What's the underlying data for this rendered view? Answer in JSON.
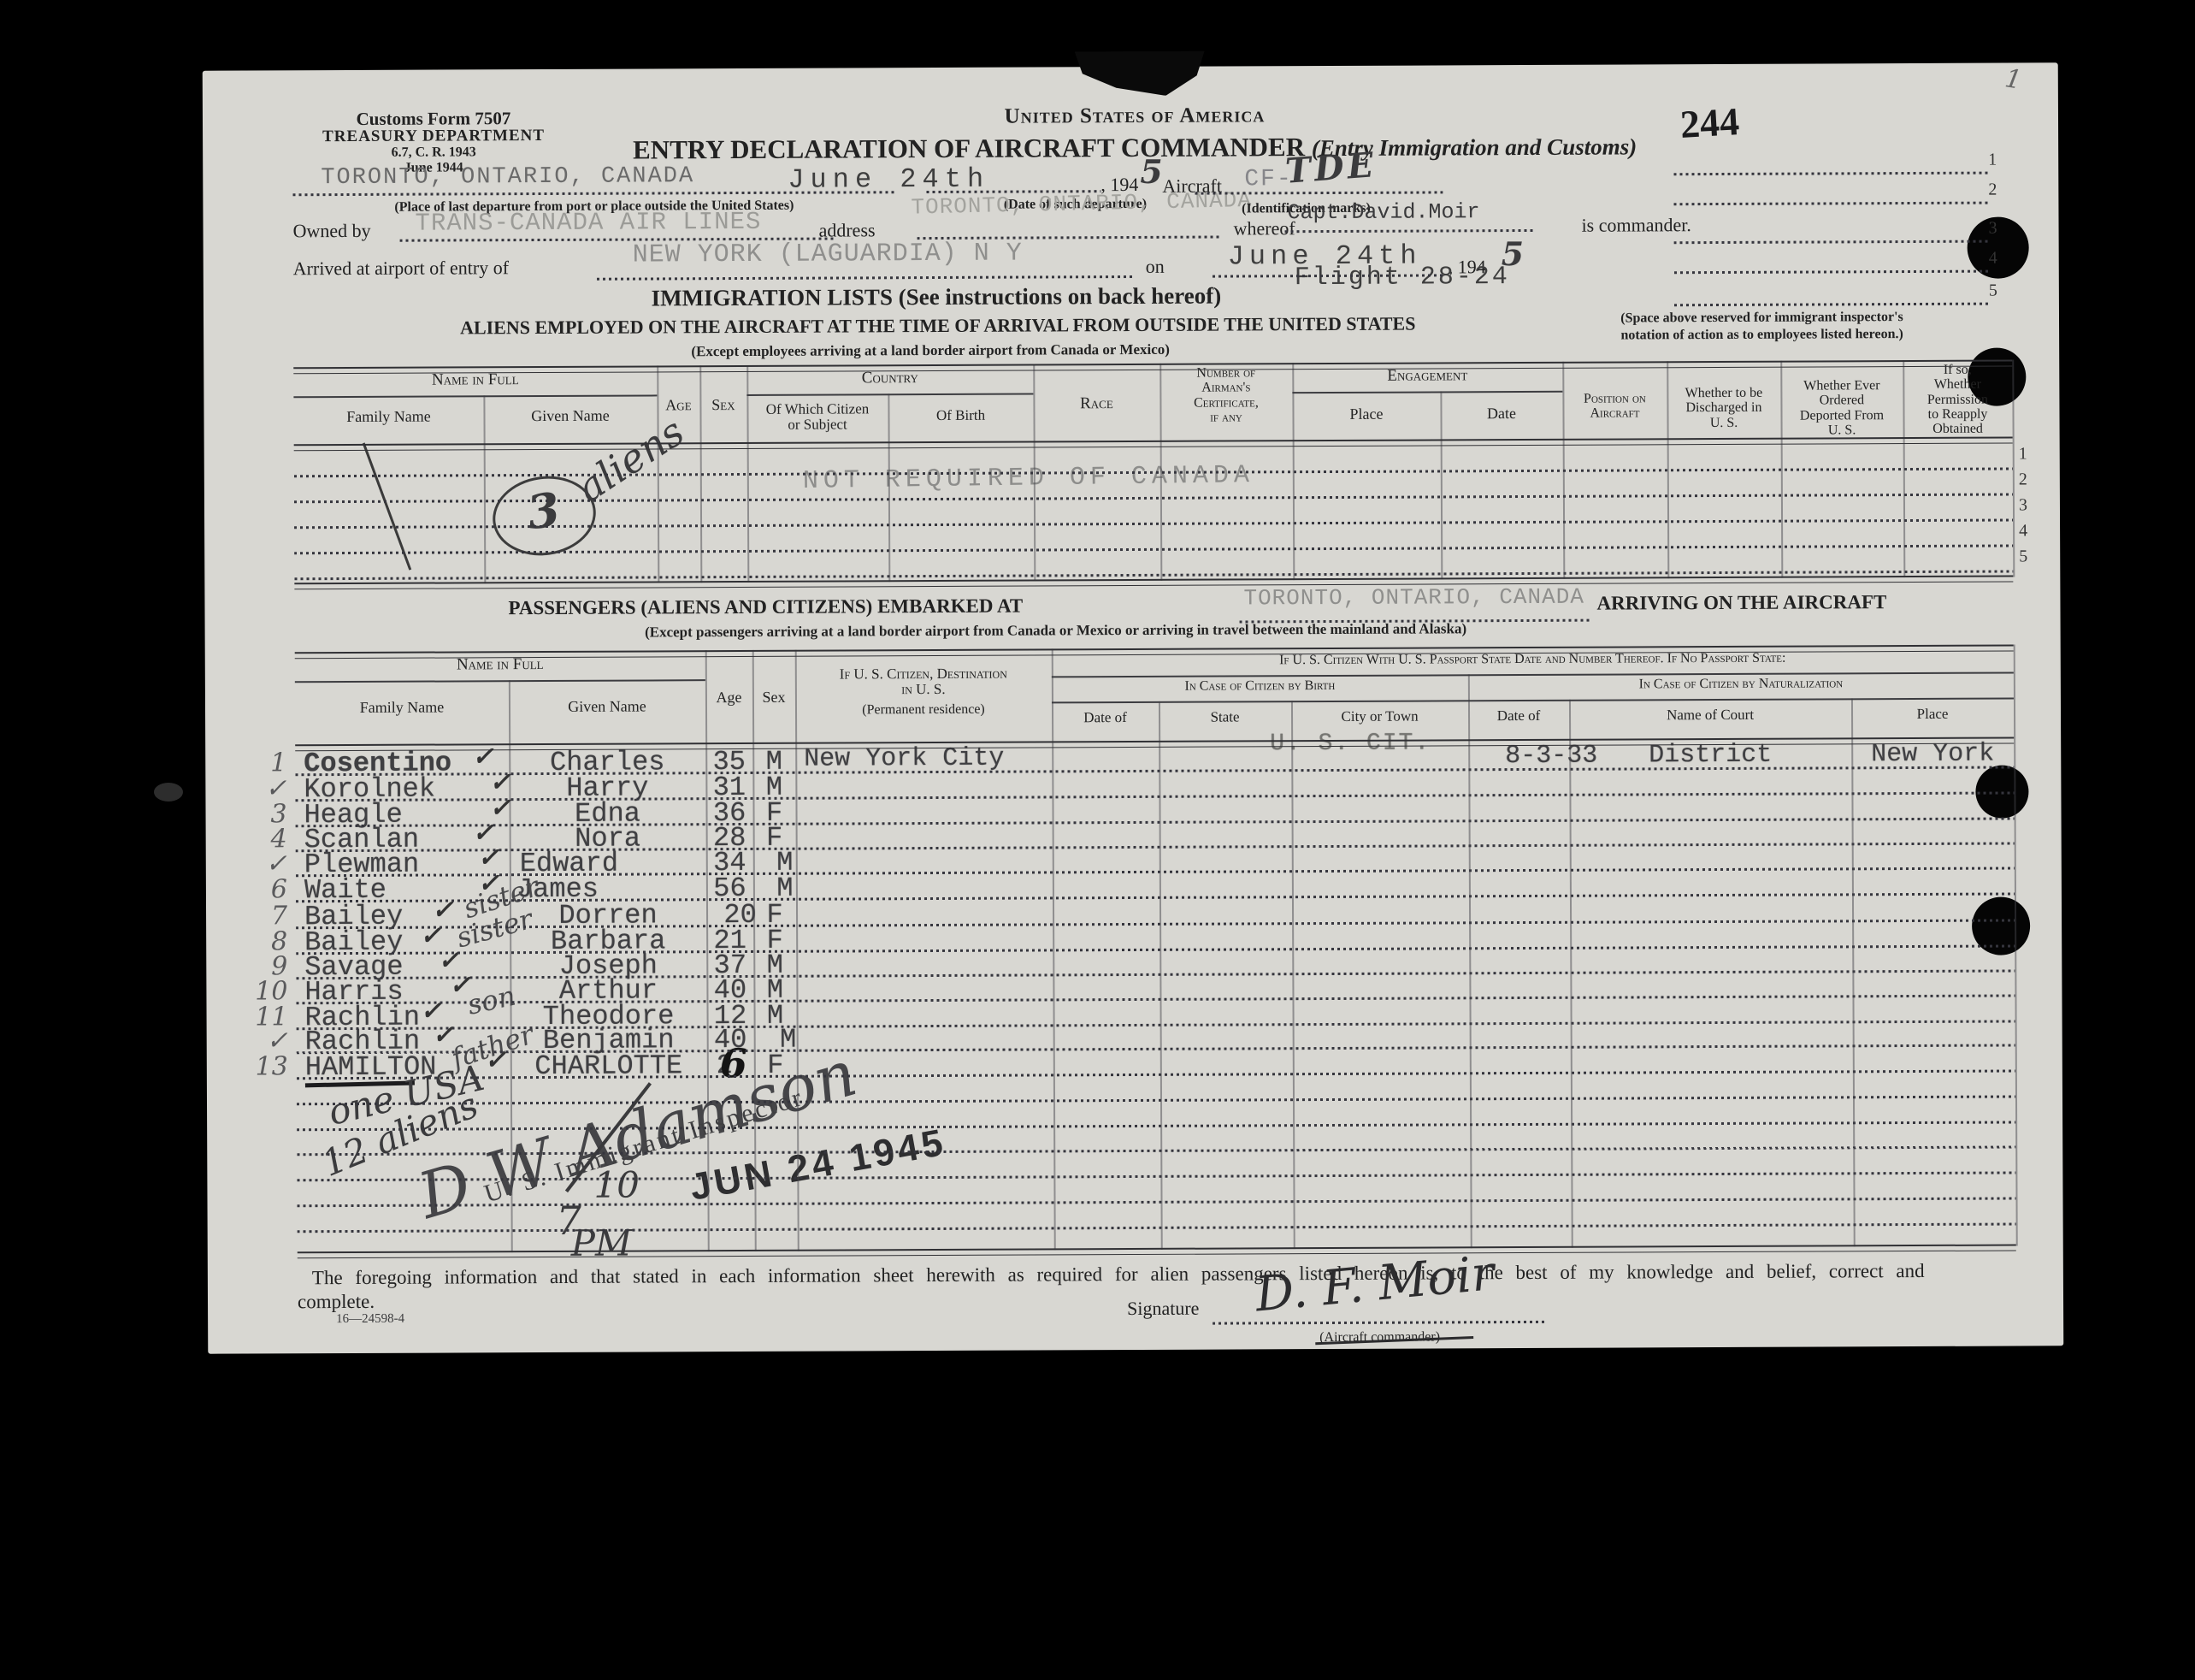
{
  "form_meta": {
    "form_name": "Customs Form 7507",
    "department": "TREASURY DEPARTMENT",
    "regulation": "6.7, C. R. 1943",
    "revision": "June 1944"
  },
  "header": {
    "nation": "United States of America",
    "title": "ENTRY DECLARATION OF AIRCRAFT COMMANDER",
    "title_paren": "(Entry Immigration and Customs)",
    "page_stamp": "244",
    "corner_pencil": "1"
  },
  "departure": {
    "place_typed": "TORONTO, ONTARIO, CANADA",
    "place_caption": "(Place of last departure from port or place outside the United States)",
    "date_typed": "June 24th",
    "year_printed": ", 194",
    "year_written": "5",
    "date_caption": "(Date of such departure)",
    "date_typed_faded": "TORONTO, ONTARIO, CANADA",
    "aircraft_label": "Aircraft",
    "aircraft_typed": "CF-",
    "aircraft_written": "TDE",
    "id_caption": "(Identification marks)"
  },
  "owner": {
    "owned_by_label": "Owned by",
    "owner_typed": "TRANS-CANADA AIR LINES",
    "address_label": "address",
    "whereof_label": "whereof",
    "commander_typed": "Capt.David.Moir",
    "commander_suffix": "is commander."
  },
  "arrival": {
    "label": "Arrived at airport of entry of",
    "airport_typed": "NEW YORK (LAGUARDIA) N Y",
    "on_label": "on",
    "date_typed": "June 24th",
    "year_printed": ", 194",
    "year_written": "5",
    "flight_typed": "Flight 28-24"
  },
  "inspector_space": {
    "numbers": [
      "1",
      "2",
      "3",
      "4",
      "5"
    ],
    "caption1": "(Space above reserved for immigrant inspector's",
    "caption2": "notation of action as to employees listed hereon.)"
  },
  "immigration": {
    "title": "IMMIGRATION LISTS  (See instructions on back hereof)",
    "subtitle": "ALIENS EMPLOYED ON THE AIRCRAFT AT THE TIME OF ARRIVAL FROM OUTSIDE THE UNITED STATES",
    "exception": "(Except employees arriving at a land border airport from Canada or Mexico)"
  },
  "crew_table": {
    "headers": {
      "name_in_full": "Name in Full",
      "family": "Family Name",
      "given": "Given Name",
      "age": "Age",
      "sex": "Sex",
      "country": "Country",
      "citizen": "Of Which Citizen\nor Subject",
      "birth": "Of Birth",
      "race": "Race",
      "airman_cert": "Number of\nAirman's\nCertificate,\nif any",
      "engagement": "Engagement",
      "place": "Place",
      "date": "Date",
      "position": "Position on\nAircraft",
      "discharged": "Whether to be\nDischarged in\nU. S.",
      "deported": "Whether Ever\nOrdered\nDeported From\nU. S.",
      "reapply": "If so,\nWhether\nPermission\nto Reapply\nObtained"
    },
    "row_numbers": [
      "1",
      "2",
      "3",
      "4",
      "5"
    ],
    "annotations": {
      "count": "3",
      "word": "aliens",
      "stamp": "NOT REQUIRED OF CANADA"
    }
  },
  "passengers_heading": {
    "left": "PASSENGERS  (ALIENS  AND  CITIZENS)  EMBARKED  AT",
    "embarked_typed": "TORONTO, ONTARIO, CANADA",
    "right": "ARRIVING ON THE AIRCRAFT",
    "exception": "(Except passengers arriving at a land border airport from Canada or Mexico or arriving in travel between the mainland and Alaska)"
  },
  "passenger_table": {
    "headers": {
      "name_in_full": "Name in Full",
      "family": "Family Name",
      "given": "Given Name",
      "age": "Age",
      "sex": "Sex",
      "destination": "If U. S. Citizen, Destination\nin U. S.",
      "destination_sub": "(Permanent residence)",
      "passport": "If U. S. Citizen With U. S. Passport State Date and Number Thereof.  If No Passport State:",
      "by_birth": "In Case of Citizen by Birth",
      "by_nat": "In Case of Citizen by Naturalization",
      "b_date": "Date of",
      "b_state": "State",
      "b_city": "City or Town",
      "n_date": "Date of",
      "n_court": "Name of Court",
      "n_place": "Place"
    },
    "check": "✓",
    "rows": [
      {
        "num": "1",
        "family": "Cosentino",
        "given": "Charles",
        "age": "35",
        "sex": "M",
        "destination": "New York City",
        "citizen": "U. S. CIT.",
        "nat_date": "8-3-33",
        "nat_court": "District",
        "nat_place": "New York"
      },
      {
        "num": "✓",
        "family": "Korolnek",
        "given": "Harry",
        "age": "31",
        "sex": "M"
      },
      {
        "num": "3",
        "family": "Heagle",
        "given": "Edna",
        "age": "36",
        "sex": "F"
      },
      {
        "num": "4",
        "family": "Scanlan",
        "given": "Nora",
        "age": "28",
        "sex": "F"
      },
      {
        "num": "✓",
        "family": "Plewman",
        "given": "Edward",
        "age": "34",
        "sex": "M"
      },
      {
        "num": "6",
        "family": "Waite",
        "given": "James",
        "age": "56",
        "sex": "M"
      },
      {
        "num": "7",
        "family": "Bailey",
        "note": "sister",
        "given": "Dorren",
        "age": "20",
        "sex": "F"
      },
      {
        "num": "8",
        "family": "Bailey",
        "note": "sister",
        "given": "Barbara",
        "age": "21",
        "sex": "F"
      },
      {
        "num": "9",
        "family": "Savage",
        "given": "Joseph",
        "age": "37",
        "sex": "M"
      },
      {
        "num": "10",
        "family": "Harris",
        "given": "Arthur",
        "age": "40",
        "sex": "M"
      },
      {
        "num": "11",
        "family": "Rachlin",
        "note": "son",
        "given": "Theodore",
        "age": "12",
        "sex": "M"
      },
      {
        "num": "✓",
        "family": "Rachlin",
        "note": "father",
        "given": "Benjamin",
        "age": "40",
        "sex": "M"
      },
      {
        "num": "13",
        "family": "HAMILTON",
        "given": "CHARLOTTE",
        "age": "2",
        "sex": "F"
      }
    ],
    "hamilton_age_digit": "6"
  },
  "inspector_notes": {
    "count_usa": "one USA",
    "count_aliens": "12 aliens",
    "signature": "D W Adamson",
    "title_stamp": "U. S. Immigrant Inspector",
    "time_hour": "7",
    "time_minutes": "10",
    "time_ampm": "PM",
    "date_stamp": "JUN 24 1945"
  },
  "footer": {
    "declaration": "The foregoing information and that stated in each information sheet herewith as required for alien passengers listed hereon is, to the best of my knowledge and belief, correct and",
    "declaration2": "complete.",
    "plate": "16—24598-4",
    "signature_label": "Signature",
    "signature_written": "D. F. Moir",
    "signature_caption": "(Aircraft commander)"
  }
}
